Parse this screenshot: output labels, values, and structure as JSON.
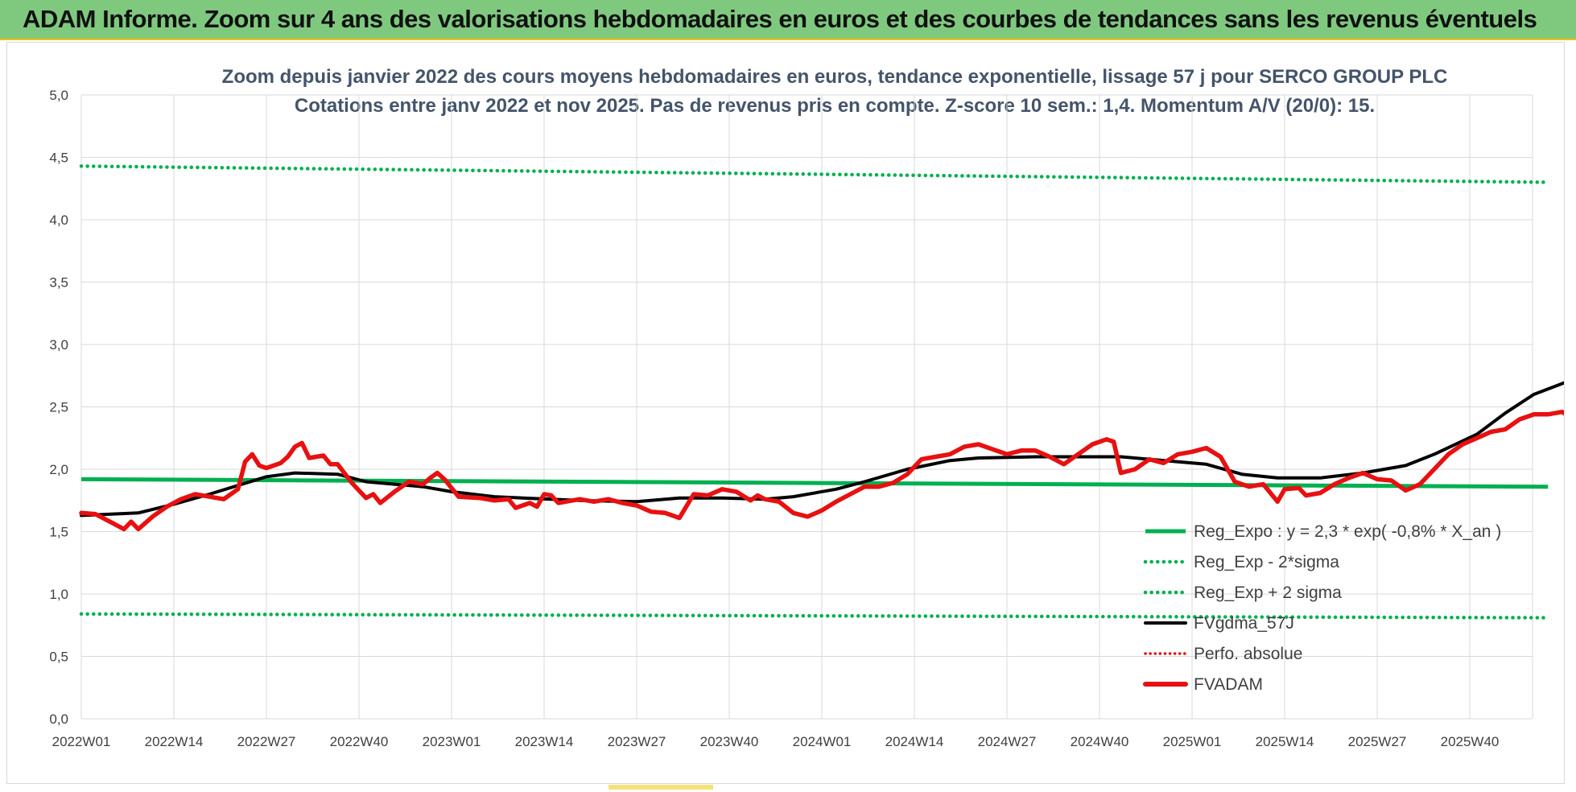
{
  "banner": {
    "title": "ADAM Informe. Zoom sur 4 ans des valorisations hebdomadaires en euros et des courbes de tendances sans les revenus éventuels"
  },
  "colors": {
    "banner_bg": "#7fc97f",
    "reg_expo": "#00b050",
    "fvgdma": "#000000",
    "fvadam": "#e81010",
    "perfo": "#e81010",
    "subtitle": "#44546a"
  },
  "chart_data": {
    "type": "line",
    "title": "Zoom depuis janvier 2022 des cours moyens hebdomadaires en euros, tendance exponentielle, lissage 57 j pour SERCO GROUP PLC",
    "subtitle": "Cotations entre janv 2022 et nov 2025. Pas de revenus pris en compte. Z-score 10 sem.: 1,4. Momentum A/V (20/0): 15.",
    "xlabel": "",
    "ylabel": "",
    "ylim": [
      0,
      5
    ],
    "y_ticks": [
      "0,0",
      "0,5",
      "1,0",
      "1,5",
      "2,0",
      "2,5",
      "3,0",
      "3,5",
      "4,0",
      "4,5",
      "5,0"
    ],
    "x_ticks": [
      "2022W01",
      "2022W14",
      "2022W27",
      "2022W40",
      "2023W01",
      "2023W14",
      "2023W27",
      "2023W40",
      "2024W01",
      "2024W14",
      "2024W27",
      "2024W40",
      "2025W01",
      "2025W14",
      "2025W27",
      "2025W40"
    ],
    "x_range_weeks": [
      0,
      206
    ],
    "grid": true,
    "legend_position": "bottom-right",
    "series": [
      {
        "name": "Reg_Expo : y = 2,3 * exp( -0,8% * X_an )",
        "style": "solid",
        "points": [
          [
            0,
            1.92
          ],
          [
            206,
            1.86
          ]
        ]
      },
      {
        "name": "Reg_Exp - 2*sigma",
        "style": "dotted",
        "points": [
          [
            0,
            0.84
          ],
          [
            206,
            0.81
          ]
        ]
      },
      {
        "name": "Reg_Exp + 2 sigma",
        "style": "dotted",
        "points": [
          [
            0,
            4.43
          ],
          [
            206,
            4.3
          ]
        ]
      },
      {
        "name": "FVgdma_57J",
        "style": "solid",
        "points": [
          [
            0,
            1.63
          ],
          [
            8,
            1.65
          ],
          [
            13,
            1.72
          ],
          [
            18,
            1.8
          ],
          [
            22,
            1.87
          ],
          [
            26,
            1.94
          ],
          [
            30,
            1.97
          ],
          [
            36,
            1.96
          ],
          [
            40,
            1.9
          ],
          [
            44,
            1.88
          ],
          [
            48,
            1.86
          ],
          [
            52,
            1.82
          ],
          [
            58,
            1.78
          ],
          [
            62,
            1.77
          ],
          [
            70,
            1.75
          ],
          [
            78,
            1.74
          ],
          [
            84,
            1.77
          ],
          [
            90,
            1.77
          ],
          [
            96,
            1.76
          ],
          [
            100,
            1.78
          ],
          [
            106,
            1.84
          ],
          [
            110,
            1.9
          ],
          [
            116,
            2.0
          ],
          [
            122,
            2.07
          ],
          [
            126,
            2.09
          ],
          [
            134,
            2.1
          ],
          [
            146,
            2.1
          ],
          [
            150,
            2.08
          ],
          [
            158,
            2.04
          ],
          [
            163,
            1.96
          ],
          [
            168,
            1.93
          ],
          [
            174,
            1.93
          ],
          [
            180,
            1.97
          ],
          [
            186,
            2.03
          ],
          [
            190,
            2.12
          ],
          [
            196,
            2.28
          ],
          [
            200,
            2.45
          ],
          [
            204,
            2.6
          ],
          [
            210,
            2.73
          ],
          [
            214,
            2.77
          ]
        ]
      },
      {
        "name": "Perfo. absolue",
        "style": "dotted",
        "points": []
      },
      {
        "name": "FVADAM",
        "style": "solid-thick",
        "points": [
          [
            0,
            1.65
          ],
          [
            2,
            1.64
          ],
          [
            4,
            1.58
          ],
          [
            6,
            1.52
          ],
          [
            7,
            1.58
          ],
          [
            8,
            1.52
          ],
          [
            10,
            1.62
          ],
          [
            12,
            1.7
          ],
          [
            14,
            1.76
          ],
          [
            16,
            1.8
          ],
          [
            18,
            1.78
          ],
          [
            20,
            1.76
          ],
          [
            22,
            1.84
          ],
          [
            23,
            2.06
          ],
          [
            24,
            2.12
          ],
          [
            25,
            2.03
          ],
          [
            26,
            2.01
          ],
          [
            28,
            2.05
          ],
          [
            29,
            2.1
          ],
          [
            30,
            2.18
          ],
          [
            31,
            2.21
          ],
          [
            32,
            2.09
          ],
          [
            34,
            2.11
          ],
          [
            35,
            2.04
          ],
          [
            36,
            2.04
          ],
          [
            38,
            1.89
          ],
          [
            40,
            1.77
          ],
          [
            41,
            1.8
          ],
          [
            42,
            1.73
          ],
          [
            44,
            1.82
          ],
          [
            46,
            1.9
          ],
          [
            48,
            1.88
          ],
          [
            49,
            1.93
          ],
          [
            50,
            1.97
          ],
          [
            51,
            1.92
          ],
          [
            53,
            1.78
          ],
          [
            56,
            1.77
          ],
          [
            58,
            1.75
          ],
          [
            60,
            1.76
          ],
          [
            61,
            1.69
          ],
          [
            63,
            1.73
          ],
          [
            64,
            1.7
          ],
          [
            65,
            1.8
          ],
          [
            66,
            1.79
          ],
          [
            67,
            1.73
          ],
          [
            70,
            1.76
          ],
          [
            72,
            1.74
          ],
          [
            74,
            1.76
          ],
          [
            76,
            1.73
          ],
          [
            78,
            1.71
          ],
          [
            80,
            1.66
          ],
          [
            82,
            1.65
          ],
          [
            84,
            1.61
          ],
          [
            86,
            1.8
          ],
          [
            88,
            1.79
          ],
          [
            90,
            1.84
          ],
          [
            92,
            1.82
          ],
          [
            94,
            1.75
          ],
          [
            95,
            1.79
          ],
          [
            96,
            1.76
          ],
          [
            98,
            1.74
          ],
          [
            100,
            1.65
          ],
          [
            102,
            1.62
          ],
          [
            104,
            1.67
          ],
          [
            106,
            1.74
          ],
          [
            108,
            1.8
          ],
          [
            110,
            1.86
          ],
          [
            112,
            1.86
          ],
          [
            114,
            1.89
          ],
          [
            116,
            1.96
          ],
          [
            118,
            2.08
          ],
          [
            120,
            2.1
          ],
          [
            122,
            2.12
          ],
          [
            124,
            2.18
          ],
          [
            126,
            2.2
          ],
          [
            128,
            2.16
          ],
          [
            130,
            2.12
          ],
          [
            132,
            2.15
          ],
          [
            134,
            2.15
          ],
          [
            136,
            2.1
          ],
          [
            138,
            2.04
          ],
          [
            140,
            2.12
          ],
          [
            142,
            2.2
          ],
          [
            144,
            2.24
          ],
          [
            145,
            2.22
          ],
          [
            146,
            1.97
          ],
          [
            148,
            2.0
          ],
          [
            150,
            2.08
          ],
          [
            152,
            2.05
          ],
          [
            154,
            2.12
          ],
          [
            156,
            2.14
          ],
          [
            158,
            2.17
          ],
          [
            160,
            2.1
          ],
          [
            162,
            1.9
          ],
          [
            164,
            1.86
          ],
          [
            166,
            1.88
          ],
          [
            168,
            1.74
          ],
          [
            169,
            1.84
          ],
          [
            171,
            1.85
          ],
          [
            172,
            1.79
          ],
          [
            174,
            1.81
          ],
          [
            176,
            1.88
          ],
          [
            178,
            1.93
          ],
          [
            180,
            1.97
          ],
          [
            182,
            1.92
          ],
          [
            184,
            1.91
          ],
          [
            186,
            1.83
          ],
          [
            188,
            1.88
          ],
          [
            190,
            2.0
          ],
          [
            192,
            2.12
          ],
          [
            194,
            2.2
          ],
          [
            196,
            2.25
          ],
          [
            198,
            2.3
          ],
          [
            200,
            2.32
          ],
          [
            202,
            2.4
          ],
          [
            204,
            2.44
          ],
          [
            206,
            2.44
          ],
          [
            208,
            2.46
          ],
          [
            209,
            2.42
          ],
          [
            210,
            2.48
          ],
          [
            212,
            2.66
          ],
          [
            214,
            2.6
          ],
          [
            216,
            2.55
          ],
          [
            218,
            2.64
          ],
          [
            220,
            2.75
          ],
          [
            221,
            2.86
          ],
          [
            222,
            2.9
          ],
          [
            224,
            2.82
          ],
          [
            225,
            2.79
          ],
          [
            226,
            2.84
          ]
        ]
      }
    ]
  }
}
